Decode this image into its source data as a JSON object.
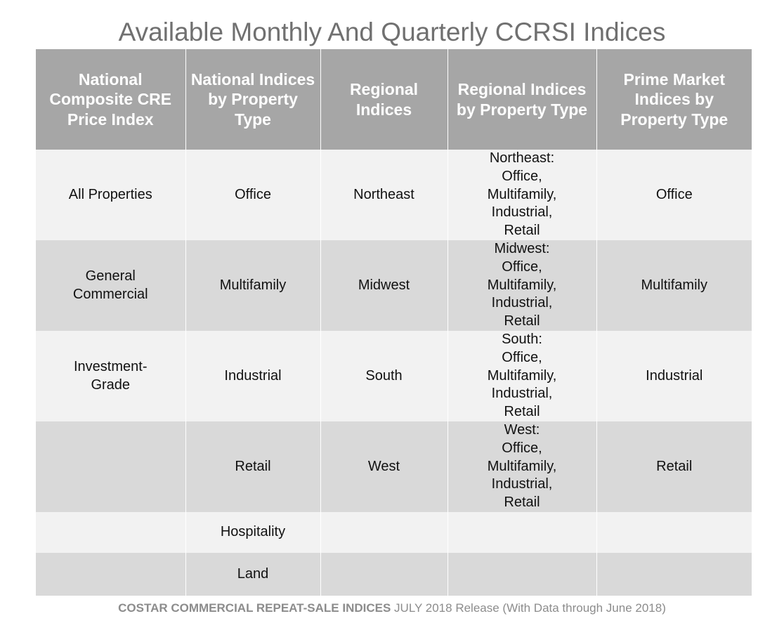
{
  "title": "Available Monthly And Quarterly CCRSI Indices",
  "table": {
    "headers": [
      "National Composite CRE Price Index",
      "National Indices by Property Type",
      "Regional Indices",
      "Regional Indices by Property Type",
      "Prime Market Indices by Property Type"
    ],
    "rows": [
      [
        "All Properties",
        "Office",
        "Northeast",
        "Northeast:\nOffice,\nMultifamily,\nIndustrial,\nRetail",
        "Office"
      ],
      [
        "General\nCommercial",
        "Multifamily",
        "Midwest",
        "Midwest:\nOffice,\nMultifamily,\nIndustrial,\nRetail",
        "Multifamily"
      ],
      [
        "Investment-\nGrade",
        "Industrial",
        "South",
        "South:\nOffice,\nMultifamily,\nIndustrial,\nRetail",
        "Industrial"
      ],
      [
        "",
        "Retail",
        "West",
        "West:\nOffice,\nMultifamily,\nIndustrial,\nRetail",
        "Retail"
      ],
      [
        "",
        "Hospitality",
        "",
        "",
        ""
      ],
      [
        "",
        "Land",
        "",
        "",
        ""
      ]
    ]
  },
  "footer": {
    "brand": "COSTAR COMMERCIAL REPEAT-SALE INDICES",
    "release": "JULY 2018 Release (With Data through June 2018)"
  }
}
